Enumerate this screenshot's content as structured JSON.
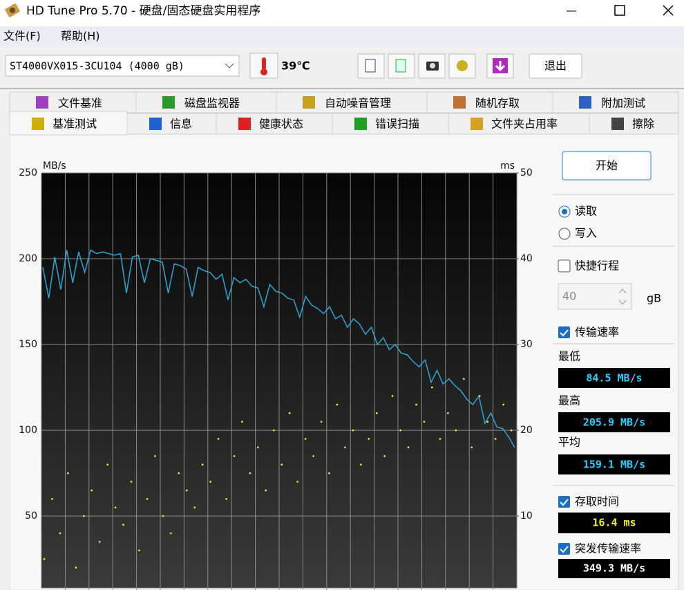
{
  "window": {
    "title": "HD Tune Pro 5.70 - 硬盘/固态硬盘实用程序"
  },
  "menu": [
    "文件(F)",
    "帮助(H)"
  ],
  "toolbar": {
    "drive": "ST4000VX015-3CU104 (4000 gB)",
    "temperature": "39℃",
    "exit": "退出"
  },
  "tabs": {
    "row1": [
      "文件基准",
      "磁盘监视器",
      "自动噪音管理",
      "随机存取",
      "附加测试"
    ],
    "row2": [
      "基准测试",
      "信息",
      "健康状态",
      "错误扫描",
      "文件夹占用率",
      "擦除"
    ]
  },
  "chart_data": {
    "type": "line",
    "y_label": "MB/s",
    "y2_label": "ms",
    "ylim": [
      15,
      250
    ],
    "yticks": [
      50,
      100,
      150,
      200,
      250
    ],
    "y2lim": [
      3,
      50
    ],
    "y2ticks": [
      10,
      20,
      30,
      40,
      50
    ],
    "grid": true,
    "series": [
      {
        "type": "line",
        "color": "#2ea6d6",
        "values": [
          195,
          177,
          201,
          182,
          205,
          186,
          204,
          192,
          205,
          203,
          204,
          203,
          202,
          203,
          180,
          201,
          202,
          186,
          200,
          199,
          198,
          180,
          197,
          196,
          194,
          178,
          195,
          193,
          192,
          188,
          191,
          176,
          189,
          186,
          188,
          184,
          183,
          172,
          185,
          181,
          180,
          177,
          176,
          166,
          178,
          173,
          171,
          168,
          172,
          165,
          167,
          160,
          165,
          162,
          156,
          160,
          150,
          154,
          147,
          150,
          145,
          144,
          140,
          137,
          141,
          128,
          135,
          127,
          130,
          126,
          123,
          118,
          115,
          120,
          104,
          110,
          102,
          101,
          96,
          90
        ]
      },
      {
        "type": "scatter",
        "axis": "y2",
        "color": "#e6e632",
        "values": [
          5,
          12,
          8,
          15,
          4,
          10,
          13,
          7,
          16,
          11,
          9,
          14,
          6,
          12,
          17,
          10,
          8,
          15,
          13,
          11,
          16,
          14,
          19,
          12,
          17,
          21,
          15,
          18,
          13,
          20,
          16,
          22,
          14,
          19,
          17,
          21,
          15,
          23,
          18,
          20,
          16,
          19,
          22,
          17,
          24,
          20,
          18,
          23,
          21,
          25,
          19,
          22,
          20,
          26,
          18,
          24,
          21,
          19,
          23,
          20
        ]
      }
    ]
  },
  "panel": {
    "start": "开始",
    "read": "读取",
    "write": "写入",
    "short_stroke": "快捷行程",
    "stroke_value": "40",
    "stroke_unit": "gB",
    "transfer_rate": "传输速率",
    "min_label": "最低",
    "min_value": "84.5 MB/s",
    "max_label": "最高",
    "max_value": "205.9 MB/s",
    "avg_label": "平均",
    "avg_value": "159.1 MB/s",
    "access_time": "存取时间",
    "access_value": "16.4 ms",
    "burst_rate": "突发传输速率",
    "burst_value": "349.3 MB/s"
  }
}
